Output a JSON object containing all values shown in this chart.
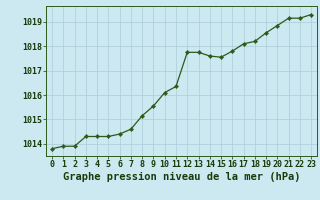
{
  "x": [
    0,
    1,
    2,
    3,
    4,
    5,
    6,
    7,
    8,
    9,
    10,
    11,
    12,
    13,
    14,
    15,
    16,
    17,
    18,
    19,
    20,
    21,
    22,
    23
  ],
  "y": [
    1013.8,
    1013.9,
    1013.9,
    1014.3,
    1014.3,
    1014.3,
    1014.4,
    1014.6,
    1015.15,
    1015.55,
    1016.1,
    1016.35,
    1017.75,
    1017.75,
    1017.6,
    1017.55,
    1017.8,
    1018.1,
    1018.2,
    1018.55,
    1018.85,
    1019.15,
    1019.15,
    1019.3
  ],
  "line_color": "#2d5a1b",
  "marker_color": "#2d5a1b",
  "bg_color": "#cce8f0",
  "grid_color": "#aaccd8",
  "title": "Graphe pression niveau de la mer (hPa)",
  "title_color": "#1a3a0a",
  "ylim": [
    1013.5,
    1019.65
  ],
  "yticks": [
    1014,
    1015,
    1016,
    1017,
    1018,
    1019
  ],
  "xticks": [
    0,
    1,
    2,
    3,
    4,
    5,
    6,
    7,
    8,
    9,
    10,
    11,
    12,
    13,
    14,
    15,
    16,
    17,
    18,
    19,
    20,
    21,
    22,
    23
  ],
  "tick_fontsize": 6.0,
  "title_fontsize": 7.5
}
